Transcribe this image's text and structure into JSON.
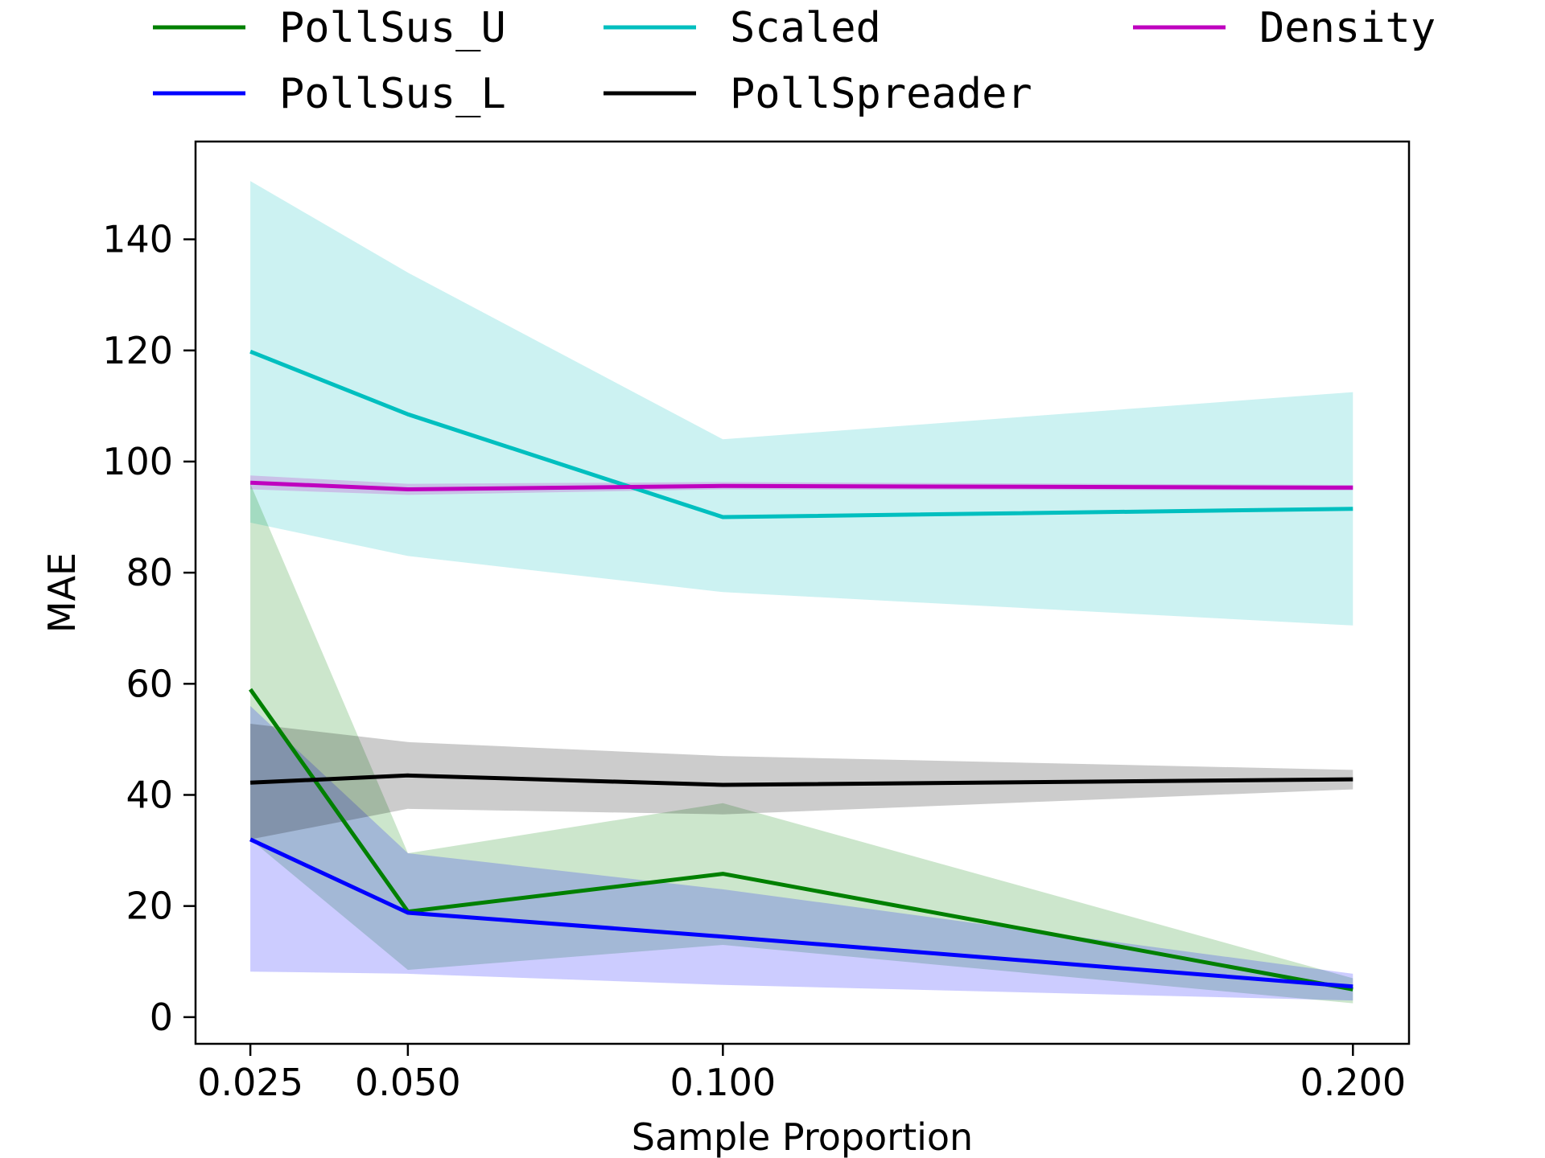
{
  "chart_data": {
    "type": "line",
    "title": "",
    "xlabel": "Sample Proportion",
    "ylabel": "MAE",
    "x": [
      0.025,
      0.05,
      0.1,
      0.2
    ],
    "x_tick_labels": [
      "0.025",
      "0.050",
      "0.100",
      "0.200"
    ],
    "y_ticks": [
      0,
      20,
      40,
      60,
      80,
      100,
      120,
      140
    ],
    "y_tick_labels": [
      "0",
      "20",
      "40",
      "60",
      "80",
      "100",
      "120",
      "140"
    ],
    "xlim": [
      0.0163,
      0.2089
    ],
    "ylim": [
      -4.8,
      157.6
    ],
    "grid": false,
    "legend_position": "top",
    "series": [
      {
        "name": "PollSus_U",
        "color": "#008000",
        "band_color": "#008000",
        "values": [
          59.0,
          19.0,
          25.8,
          5.0
        ],
        "lower": [
          32.0,
          8.5,
          13.0,
          2.5
        ],
        "upper": [
          96.0,
          29.5,
          38.5,
          7.0
        ]
      },
      {
        "name": "PollSus_L",
        "color": "#0000ff",
        "band_color": "#0000ff",
        "values": [
          32.0,
          18.8,
          14.5,
          5.5
        ],
        "lower": [
          8.2,
          7.8,
          5.8,
          3.0
        ],
        "upper": [
          56.0,
          29.5,
          23.0,
          7.8
        ]
      },
      {
        "name": "Scaled",
        "color": "#00bfbf",
        "band_color": "#00bfbf",
        "values": [
          119.8,
          108.5,
          90.0,
          91.5
        ],
        "lower": [
          89.0,
          83.0,
          76.5,
          70.5
        ],
        "upper": [
          150.5,
          134.0,
          104.0,
          112.5
        ]
      },
      {
        "name": "PollSpreader",
        "color": "#000000",
        "band_color": "#000000",
        "values": [
          42.2,
          43.5,
          41.8,
          42.8
        ],
        "lower": [
          32.0,
          37.5,
          36.5,
          41.0
        ],
        "upper": [
          52.8,
          49.5,
          47.0,
          44.5
        ]
      },
      {
        "name": "Density",
        "color": "#bf00bf",
        "band_color": "#bf00bf",
        "values": [
          96.2,
          95.0,
          95.6,
          95.3
        ],
        "lower": [
          95.0,
          94.0,
          95.0,
          94.8
        ],
        "upper": [
          97.5,
          96.0,
          96.3,
          95.8
        ]
      }
    ],
    "fill_order": [
      "Scaled",
      "Density",
      "PollSus_U",
      "PollSus_L",
      "PollSpreader"
    ],
    "line_order": [
      "PollSus_U",
      "PollSus_L",
      "Scaled",
      "PollSpreader",
      "Density"
    ],
    "legend_layout": [
      [
        "PollSus_U",
        "Scaled",
        "Density"
      ],
      [
        "PollSus_L",
        "PollSpreader"
      ]
    ]
  }
}
